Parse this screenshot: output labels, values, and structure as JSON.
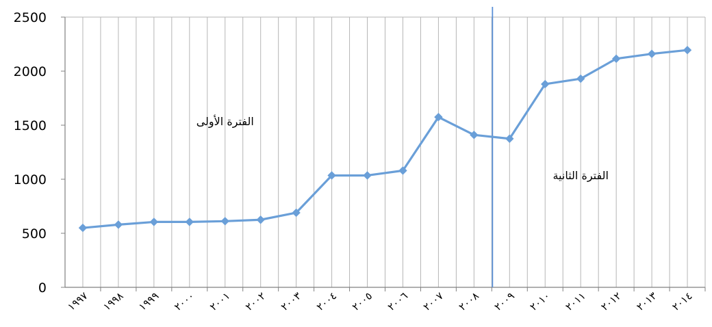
{
  "chart_data": {
    "type": "line",
    "title": "",
    "xlabel": "",
    "ylabel": "",
    "categories": [
      "١٩٩٧",
      "١٩٩٨",
      "١٩٩٩",
      "٢٠٠٠",
      "٢٠٠١",
      "٢٠٠٢",
      "٢٠٠٣",
      "٢٠٠٤",
      "٢٠٠٥",
      "٢٠٠٦",
      "٢٠٠٧",
      "٢٠٠٨",
      "٢٠٠٩",
      "٢٠١٠",
      "٢٠١١",
      "٢٠١٢",
      "٢٠١٣",
      "٢٠١٤"
    ],
    "values": [
      550,
      580,
      605,
      605,
      612,
      625,
      690,
      1035,
      1035,
      1080,
      1575,
      1410,
      1375,
      1880,
      1930,
      2115,
      2160,
      2195
    ],
    "ylim": [
      0,
      2500
    ],
    "yticks": [
      0,
      500,
      1000,
      1500,
      2000,
      2500
    ],
    "grid": "vertical",
    "series_color": "#6a9fd8",
    "divider_color": "#5a8fd6",
    "annotations": [
      {
        "text": "الفترة الأولى",
        "x_category": 4,
        "y": 1500
      },
      {
        "text": "الفترة الثانية",
        "x_category": 14,
        "y": 1000
      }
    ],
    "divider_after_category": "٢٠٠٨"
  }
}
